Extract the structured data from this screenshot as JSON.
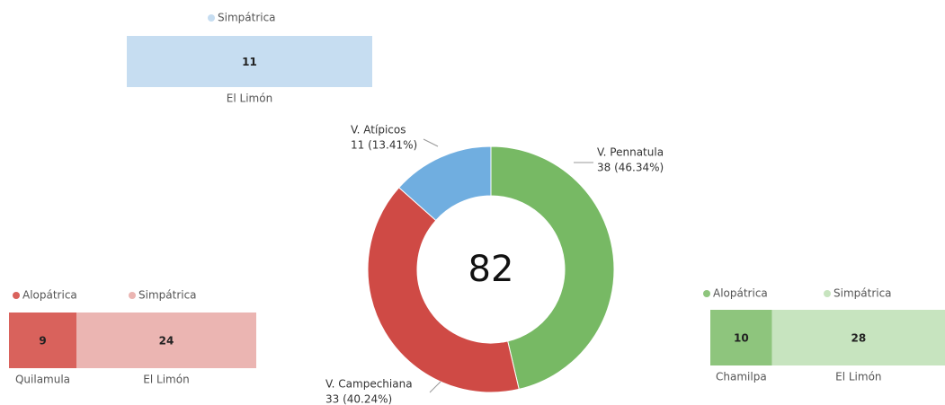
{
  "chart_data": [
    {
      "type": "stacked_bar",
      "xlim": [
        0,
        11
      ],
      "series": [
        {
          "name": "Simpátrica",
          "label": "El Limón",
          "color": "#c6ddf1",
          "values": [
            11
          ]
        }
      ]
    },
    {
      "type": "donut",
      "center_label": 82,
      "categories": [
        "V. Pennatula",
        "V. Campechiana",
        "V. Atípicos"
      ],
      "values": [
        38,
        33,
        11
      ],
      "value_labels": [
        "38 (46.34%)",
        "33 (40.24%)",
        "11 (13.41%)"
      ],
      "colors": [
        "#77b964",
        "#cf4a45",
        "#70aee0"
      ]
    },
    {
      "type": "stacked_bar",
      "xlim": [
        0,
        33
      ],
      "series": [
        {
          "name": "Alopátrica",
          "label": "Quilamula",
          "color": "#d9625c",
          "values": [
            9
          ]
        },
        {
          "name": "Simpátrica",
          "label": "El Limón",
          "color": "#ebb5b2",
          "values": [
            24
          ]
        }
      ]
    },
    {
      "type": "stacked_bar",
      "xlim": [
        0,
        38
      ],
      "series": [
        {
          "name": "Alopátrica",
          "label": "Chamilpa",
          "color": "#8ec57d",
          "values": [
            10
          ]
        },
        {
          "name": "Simpátrica",
          "label": "El Limón",
          "color": "#c7e4bf",
          "values": [
            28
          ]
        }
      ]
    }
  ]
}
